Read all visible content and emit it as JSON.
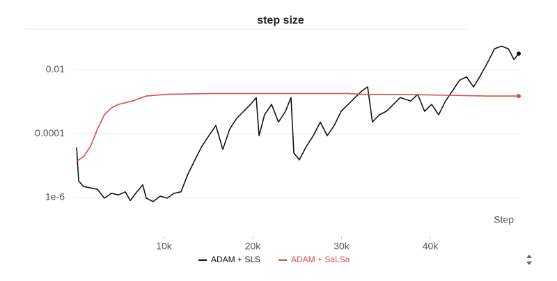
{
  "chart_data": {
    "type": "line",
    "title": "step size",
    "xlabel": "Step",
    "log_y": true,
    "grid": true,
    "legend": "bottom",
    "xlim": [
      0,
      50000
    ],
    "xticks": [
      {
        "value": 10000,
        "label": "10k"
      },
      {
        "value": 20000,
        "label": "20k"
      },
      {
        "value": 30000,
        "label": "30k"
      },
      {
        "value": 40000,
        "label": "40k"
      }
    ],
    "ylim": [
      6e-08,
      0.16
    ],
    "yticks": [
      {
        "value": 1e-06,
        "label": "1e-6"
      },
      0.0001,
      0.01
    ],
    "series": [
      {
        "name": "ADAM + SLS",
        "color": "#111111",
        "x": [
          160,
          390,
          940,
          1730,
          2510,
          3290,
          4080,
          4860,
          5650,
          6200,
          6820,
          7610,
          8000,
          8780,
          9570,
          10350,
          11140,
          11920,
          12710,
          13490,
          14270,
          15060,
          15840,
          16630,
          17410,
          18200,
          18980,
          19760,
          20390,
          20710,
          21330,
          22120,
          22900,
          23690,
          24310,
          24630,
          25250,
          26040,
          26820,
          27610,
          28390,
          29180,
          29960,
          30750,
          31530,
          32310,
          32940,
          33480,
          34270,
          35050,
          35840,
          36620,
          37800,
          38580,
          39360,
          40160,
          40940,
          41720,
          42510,
          43300,
          44080,
          44870,
          45660,
          46440,
          47230,
          48020,
          48800,
          49430,
          49960
        ],
        "values": [
          3.7e-05,
          3.3e-06,
          2.2e-06,
          2e-06,
          1.8e-06,
          9.5e-07,
          1.35e-06,
          1.2e-06,
          1.5e-06,
          8e-07,
          1.35e-06,
          2.5e-06,
          9.5e-07,
          7.4e-07,
          1.1e-06,
          9.5e-07,
          1.35e-06,
          1.5e-06,
          5.5e-06,
          1.5e-05,
          4e-05,
          8.6e-05,
          0.00018,
          3.2e-05,
          0.00014,
          0.0003,
          0.0005,
          0.00082,
          0.00135,
          8.6e-05,
          0.00039,
          0.00082,
          0.00023,
          0.0005,
          0.00135,
          2.5e-05,
          1.5e-05,
          4e-05,
          8.6e-05,
          0.00023,
          8.6e-05,
          0.00018,
          0.0005,
          0.00082,
          0.00135,
          0.0022,
          0.0029,
          0.00023,
          0.00039,
          0.0005,
          0.00082,
          0.00135,
          0.00105,
          0.0017,
          0.0005,
          0.00082,
          0.00039,
          0.00105,
          0.0022,
          0.0047,
          0.006,
          0.0029,
          0.0067,
          0.0165,
          0.045,
          0.055,
          0.045,
          0.021,
          0.032
        ]
      },
      {
        "name": "ADAM + SaLSa",
        "color": "#d64b4b",
        "x": [
          160,
          940,
          1730,
          2510,
          3290,
          4080,
          4860,
          6420,
          7990,
          10350,
          15060,
          30750,
          32310,
          38580,
          46440,
          49960
        ],
        "values": [
          1.35e-05,
          1.9e-05,
          4e-05,
          0.00014,
          0.00039,
          0.00064,
          0.00082,
          0.00105,
          0.0015,
          0.0017,
          0.0018,
          0.0018,
          0.0017,
          0.00165,
          0.0015,
          0.0015
        ]
      }
    ]
  }
}
